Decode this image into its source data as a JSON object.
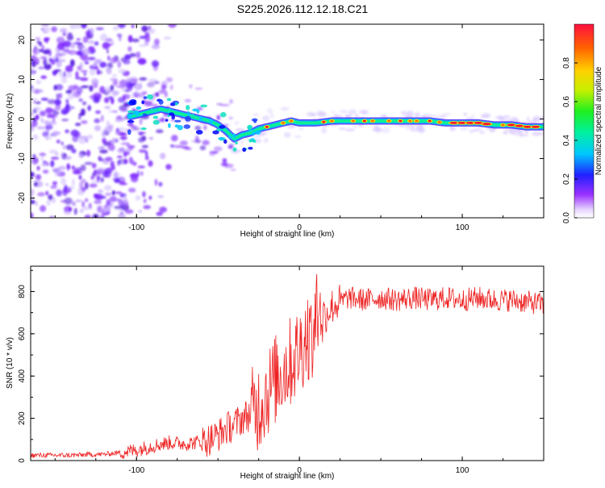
{
  "page": {
    "title": "S225.2026.112.12.18.C21"
  },
  "colors": {
    "snr_line": "#ee2222",
    "frame": "#000000",
    "background": "#ffffff"
  },
  "chart_data": [
    {
      "type": "heatmap",
      "title": "S225.2026.112.12.18.C21",
      "xlabel": "Height of straight line (km)",
      "ylabel": "Frequency (Hz)",
      "xlim": [
        -165,
        150
      ],
      "ylim": [
        -25,
        24
      ],
      "xticks": [
        -100,
        0,
        100
      ],
      "xtick_labels": [
        "-100",
        "0",
        "100"
      ],
      "yticks": [
        -20,
        -10,
        0,
        10,
        20
      ],
      "ytick_labels": [
        "-20",
        "-10",
        "0",
        "10",
        "20"
      ],
      "ridge": {
        "description": "bright narrow frequency trace; frequency (Hz) vs height (km)",
        "x": [
          -105,
          -95,
          -85,
          -75,
          -65,
          -55,
          -50,
          -45,
          -40,
          -35,
          -30,
          -25,
          -20,
          -15,
          -10,
          -5,
          0,
          5,
          10,
          20,
          30,
          40,
          50,
          60,
          70,
          80,
          90,
          100,
          110,
          120,
          130,
          140,
          150
        ],
        "y": [
          0.5,
          1.5,
          2.5,
          1.5,
          0.5,
          -0.5,
          -1.5,
          -3.0,
          -5.0,
          -4.0,
          -3.5,
          -2.5,
          -2.0,
          -1.5,
          -1.0,
          -0.5,
          -1.0,
          -1.0,
          -1.0,
          -0.5,
          -0.5,
          -0.5,
          -0.5,
          -0.5,
          -0.5,
          -0.5,
          -1.0,
          -1.0,
          -1.0,
          -1.5,
          -1.5,
          -2.0,
          -2.0
        ]
      },
      "colorbar": {
        "label": "Normalized spectral amplitude",
        "range": [
          0,
          1
        ],
        "ticks": [
          0.0,
          0.2,
          0.4,
          0.6,
          0.8
        ],
        "tick_labels": [
          "0.0",
          "0.2",
          "0.4",
          "0.6",
          "0.8"
        ],
        "colormap": "rainbow (violet → blue → cyan → green → yellow → orange → red)"
      }
    },
    {
      "type": "line",
      "xlabel": "Height of straight line (km)",
      "ylabel": "SNR (10 * v/v)",
      "xlim": [
        -165,
        150
      ],
      "ylim": [
        0,
        920
      ],
      "xticks": [
        -100,
        0,
        100
      ],
      "xtick_labels": [
        "-100",
        "0",
        "100"
      ],
      "yticks": [
        0,
        200,
        400,
        600,
        800
      ],
      "ytick_labels": [
        "0",
        "200",
        "400",
        "600",
        "800"
      ],
      "series": [
        {
          "name": "SNR",
          "color": "#ee2222",
          "x": [
            -165,
            -150,
            -140,
            -130,
            -120,
            -110,
            -100,
            -90,
            -80,
            -70,
            -60,
            -55,
            -50,
            -45,
            -40,
            -35,
            -30,
            -25,
            -20,
            -15,
            -10,
            -5,
            0,
            5,
            8,
            10,
            12,
            13,
            15,
            20,
            25,
            30,
            40,
            50,
            60,
            70,
            80,
            90,
            100,
            110,
            120,
            130,
            140,
            150
          ],
          "y": [
            25,
            25,
            25,
            28,
            30,
            38,
            50,
            70,
            85,
            80,
            90,
            100,
            120,
            150,
            170,
            200,
            220,
            260,
            320,
            380,
            430,
            470,
            520,
            600,
            580,
            640,
            600,
            700,
            680,
            730,
            750,
            770,
            760,
            770,
            760,
            770,
            760,
            770,
            760,
            770,
            760,
            760,
            750,
            740
          ]
        }
      ]
    }
  ]
}
